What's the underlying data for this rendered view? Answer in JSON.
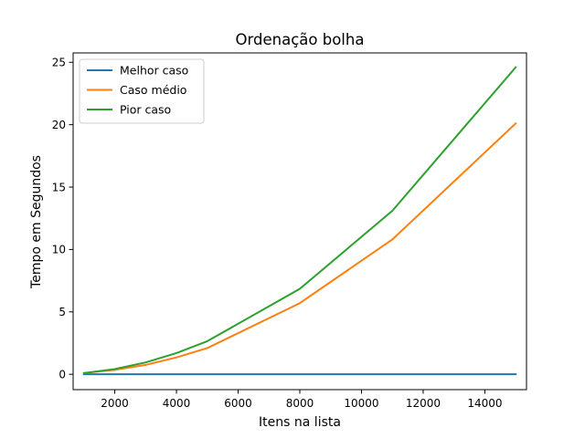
{
  "chart_data": {
    "type": "line",
    "title": "Ordenação bolha",
    "xlabel": "Itens na lista",
    "ylabel": "Tempo em Segundos",
    "xlim": [
      650,
      15350
    ],
    "ylim": [
      -1.23,
      25.75
    ],
    "xticks": [
      2000,
      4000,
      6000,
      8000,
      10000,
      12000,
      14000
    ],
    "yticks": [
      0,
      5,
      10,
      15,
      20,
      25
    ],
    "grid": false,
    "legend_position": "top-left",
    "x": [
      1000,
      2000,
      3000,
      4000,
      5000,
      8000,
      11000,
      15000
    ],
    "series": [
      {
        "name": "Melhor caso",
        "color": "#1f77b4",
        "values": [
          0.0,
          0.0,
          0.0,
          0.0,
          0.0,
          0.0,
          0.0,
          0.0
        ]
      },
      {
        "name": "Caso médio",
        "color": "#ff7f0e",
        "values": [
          0.1,
          0.35,
          0.75,
          1.35,
          2.1,
          5.7,
          10.8,
          20.1
        ]
      },
      {
        "name": "Pior caso",
        "color": "#2ca02c",
        "values": [
          0.1,
          0.42,
          0.95,
          1.7,
          2.65,
          6.85,
          13.1,
          24.6
        ]
      }
    ]
  }
}
